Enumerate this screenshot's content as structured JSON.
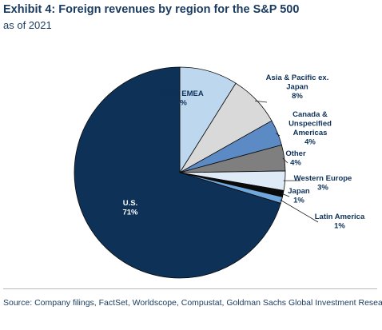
{
  "header": {
    "title": "Exhibit 4: Foreign revenues by region for the S&P 500",
    "subtitle": "as of 2021"
  },
  "footer": {
    "source": "Source: Company filings, FactSet, Worldscope, Compustat, Goldman Sachs Global Investment Research"
  },
  "chart_data": {
    "type": "pie",
    "title": "Exhibit 4: Foreign revenues by region for the S&P 500",
    "subtitle": "as of 2021",
    "slices": [
      {
        "label": "Other EMEA",
        "value": 9,
        "value_label": "9%",
        "color": "#bdd7ee"
      },
      {
        "label": "Asia & Pacific ex. Japan",
        "value": 8,
        "value_label": "8%",
        "color": "#d9d9d9"
      },
      {
        "label": "Canada & Unspecified Americas",
        "value": 4,
        "value_label": "4%",
        "color": "#5b8ac4"
      },
      {
        "label": "Other",
        "value": 4,
        "value_label": "4%",
        "color": "#7f7f7f"
      },
      {
        "label": "Western Europe",
        "value": 3,
        "value_label": "3%",
        "color": "#deebf7"
      },
      {
        "label": "Japan",
        "value": 1,
        "value_label": "1%",
        "color": "#0a0a0a"
      },
      {
        "label": "Latin America",
        "value": 1,
        "value_label": "1%",
        "color": "#6fa8dc"
      },
      {
        "label": "U.S.",
        "value": 71,
        "value_label": "71%",
        "color": "#0e3158"
      }
    ],
    "legend": "none"
  }
}
